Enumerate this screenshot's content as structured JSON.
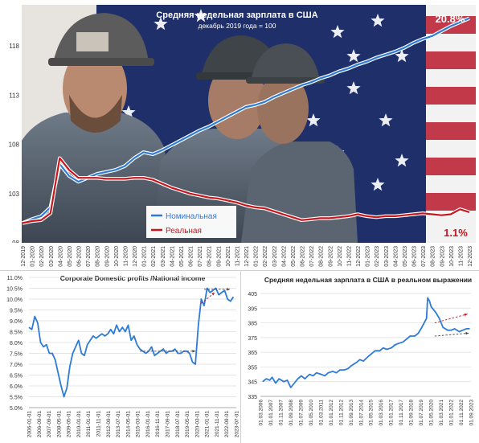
{
  "chart_data": [
    {
      "type": "line",
      "title": "Средняя недельная зарплата в США",
      "subtitle": "декабрь 2019 года = 100",
      "xlabel": "",
      "ylabel": "",
      "ylim": [
        98,
        122
      ],
      "yticks": [
        98,
        103,
        108,
        113,
        118
      ],
      "grid": false,
      "legend_position": "bottom-center",
      "x": [
        "12-2019",
        "01-2020",
        "02-2020",
        "03-2020",
        "04-2020",
        "05-2020",
        "06-2020",
        "07-2020",
        "08-2020",
        "09-2020",
        "10-2020",
        "11-2020",
        "12-2020",
        "01-2021",
        "02-2021",
        "03-2021",
        "04-2021",
        "05-2021",
        "06-2021",
        "07-2021",
        "08-2021",
        "09-2021",
        "10-2021",
        "11-2021",
        "12-2021",
        "01-2022",
        "02-2022",
        "03-2022",
        "04-2022",
        "05-2022",
        "06-2022",
        "07-2022",
        "08-2022",
        "09-2022",
        "10-2022",
        "11-2022",
        "12-2022",
        "01-2023",
        "02-2023",
        "03-2023",
        "04-2023",
        "05-2023",
        "06-2023",
        "07-2023",
        "08-2023",
        "09-2023",
        "10-2023",
        "11-2023",
        "12-2023"
      ],
      "series": [
        {
          "name": "Номинальная",
          "color": "#2e7bd6",
          "end_label": "20.8%",
          "values": [
            100.0,
            100.4,
            100.7,
            101.6,
            106.0,
            104.8,
            104.2,
            104.6,
            105.0,
            105.2,
            105.4,
            105.8,
            106.6,
            107.2,
            107.0,
            107.4,
            107.9,
            108.4,
            108.9,
            109.4,
            109.8,
            110.3,
            110.8,
            111.3,
            111.8,
            112.0,
            112.3,
            112.8,
            113.2,
            113.6,
            114.0,
            114.3,
            114.7,
            115.0,
            115.4,
            115.7,
            116.1,
            116.4,
            116.8,
            117.1,
            117.4,
            117.8,
            118.3,
            118.7,
            119.0,
            119.5,
            120.0,
            120.4,
            120.8
          ]
        },
        {
          "name": "Реальная",
          "color": "#c8161d",
          "end_label": "1.1%",
          "values": [
            100.0,
            100.2,
            100.3,
            101.0,
            106.6,
            105.4,
            104.6,
            104.6,
            104.6,
            104.5,
            104.5,
            104.5,
            104.6,
            104.6,
            104.4,
            104.0,
            103.6,
            103.3,
            103.0,
            102.8,
            102.6,
            102.5,
            102.3,
            102.1,
            101.8,
            101.6,
            101.5,
            101.2,
            100.9,
            100.6,
            100.3,
            100.4,
            100.5,
            100.5,
            100.6,
            100.7,
            100.9,
            100.7,
            100.6,
            100.7,
            100.7,
            100.8,
            100.9,
            101.0,
            100.9,
            100.8,
            100.9,
            101.4,
            101.1
          ]
        }
      ]
    },
    {
      "type": "line",
      "title": "Corporate Domestic profits /National income",
      "xlabel": "",
      "ylabel": "",
      "ylim": [
        5.0,
        11.0
      ],
      "yticks": [
        "5.0%",
        "5.5%",
        "6.0%",
        "6.5%",
        "7.0%",
        "7.5%",
        "8.0%",
        "8.5%",
        "9.0%",
        "9.5%",
        "10.0%",
        "10.5%",
        "11.0%"
      ],
      "yvalues": [
        5.0,
        5.5,
        6.0,
        6.5,
        7.0,
        7.5,
        8.0,
        8.5,
        9.0,
        9.5,
        10.0,
        10.5,
        11.0
      ],
      "xticks": [
        "2006-01-01",
        "2007-09-01",
        "2009-05-01",
        "2011-01-01",
        "2012-09-01",
        "2014-05-01",
        "2016-01-01",
        "2017-09-01",
        "2019-05-01",
        "2021-01-01",
        "2022-09-01"
      ],
      "xticks2": [
        "2006-09-01",
        "2008-05-01",
        "2010-01-01",
        "2011-11-01",
        "2013-07-01",
        "2015-03-01",
        "2016-11-01",
        "2018-07-01",
        "2020-03-01",
        "2021-11-01",
        "2023-07-01"
      ],
      "x_start": 2006.0,
      "x_end": 2023.75,
      "grid": true,
      "series": [
        {
          "color": "#2e7bd6",
          "x": [
            2006.0,
            2006.25,
            2006.5,
            2006.75,
            2007.0,
            2007.25,
            2007.5,
            2007.75,
            2008.0,
            2008.25,
            2008.5,
            2008.75,
            2009.0,
            2009.25,
            2009.5,
            2009.75,
            2010.0,
            2010.25,
            2010.5,
            2010.75,
            2011.0,
            2011.25,
            2011.5,
            2011.75,
            2012.0,
            2012.25,
            2012.5,
            2012.75,
            2013.0,
            2013.25,
            2013.5,
            2013.75,
            2014.0,
            2014.25,
            2014.5,
            2014.75,
            2015.0,
            2015.25,
            2015.5,
            2015.75,
            2016.0,
            2016.25,
            2016.5,
            2016.75,
            2017.0,
            2017.25,
            2017.5,
            2017.75,
            2018.0,
            2018.25,
            2018.5,
            2018.75,
            2019.0,
            2019.25,
            2019.5,
            2019.75,
            2020.0,
            2020.25,
            2020.5,
            2020.75,
            2021.0,
            2021.25,
            2021.5,
            2021.75,
            2022.0,
            2022.25,
            2022.5,
            2022.75,
            2023.0,
            2023.25,
            2023.5
          ],
          "y": [
            8.7,
            8.6,
            9.2,
            8.9,
            8.0,
            7.8,
            7.9,
            7.5,
            7.5,
            7.2,
            6.6,
            6.0,
            5.5,
            5.9,
            6.9,
            7.5,
            7.8,
            8.1,
            7.5,
            7.4,
            7.9,
            8.1,
            8.3,
            8.2,
            8.3,
            8.4,
            8.3,
            8.4,
            8.6,
            8.4,
            8.8,
            8.5,
            8.7,
            8.5,
            8.8,
            8.1,
            8.3,
            7.9,
            7.7,
            7.6,
            7.5,
            7.6,
            7.8,
            7.4,
            7.5,
            7.6,
            7.7,
            7.5,
            7.6,
            7.6,
            7.7,
            7.5,
            7.5,
            7.6,
            7.6,
            7.5,
            7.1,
            7.0,
            8.8,
            10.0,
            9.7,
            10.5,
            10.3,
            10.4,
            10.5,
            10.2,
            10.3,
            10.4,
            10.0,
            9.9,
            10.1
          ]
        }
      ],
      "annotations": [
        {
          "type": "dashed-arrow",
          "color": "#444444",
          "from": [
            2015.5,
            7.6
          ],
          "to": [
            2020.25,
            7.6
          ]
        },
        {
          "type": "dashed-arrow",
          "color": "#c8161d",
          "from": [
            2020.75,
            9.8
          ],
          "to": [
            2021.9,
            10.3
          ]
        },
        {
          "type": "dashed-arrow",
          "color": "#444444",
          "from": [
            2021.0,
            10.45
          ],
          "to": [
            2023.2,
            10.45
          ]
        }
      ]
    },
    {
      "type": "line",
      "title": "Средняя недельная зарплата в США в реальном выражении",
      "xlabel": "",
      "ylabel": "",
      "ylim": [
        335,
        405
      ],
      "yticks": [
        335,
        345,
        355,
        365,
        375,
        385,
        395,
        405
      ],
      "xticks": [
        "01.03.2006",
        "01.11.2007",
        "01.07.2009",
        "01.03.2011",
        "01.11.2012",
        "01.07.2014",
        "01.03.2016",
        "01.11.2017",
        "01.07.2019",
        "01.03.2021",
        "01.11.2022"
      ],
      "xticks2": [
        "01.01.2007",
        "01.09.2008",
        "01.05.2010",
        "01.01.2012",
        "01.09.2013",
        "01.05.2015",
        "01.01.2017",
        "01.09.2018",
        "01.05.2020",
        "01.01.2022",
        "01.09.2023"
      ],
      "x_start": 2006.0,
      "x_end": 2024.0,
      "grid": true,
      "series": [
        {
          "color": "#2e7bd6",
          "x": [
            2006.2,
            2006.5,
            2006.8,
            2007.0,
            2007.3,
            2007.6,
            2008.0,
            2008.3,
            2008.6,
            2008.9,
            2009.2,
            2009.5,
            2009.8,
            2010.2,
            2010.5,
            2010.8,
            2011.2,
            2011.5,
            2011.8,
            2012.2,
            2012.5,
            2012.8,
            2013.2,
            2013.5,
            2013.8,
            2014.2,
            2014.5,
            2014.8,
            2015.2,
            2015.5,
            2015.8,
            2016.2,
            2016.5,
            2016.8,
            2017.2,
            2017.5,
            2017.8,
            2018.2,
            2018.5,
            2018.8,
            2019.2,
            2019.5,
            2019.8,
            2020.0,
            2020.2,
            2020.3,
            2020.45,
            2020.6,
            2020.8,
            2021.0,
            2021.3,
            2021.6,
            2022.0,
            2022.3,
            2022.6,
            2023.0,
            2023.3,
            2023.6,
            2023.9
          ],
          "y": [
            345,
            347,
            346,
            348,
            344,
            347,
            345,
            346,
            341,
            344,
            347,
            349,
            347,
            350,
            349,
            351,
            350,
            349,
            351,
            352,
            351,
            353,
            353,
            354,
            356,
            358,
            360,
            359,
            362,
            364,
            366,
            366,
            368,
            367,
            368,
            370,
            371,
            372,
            374,
            376,
            376,
            378,
            382,
            385,
            388,
            402,
            400,
            396,
            394,
            392,
            388,
            382,
            380,
            380,
            381,
            379,
            380,
            381,
            381
          ]
        }
      ],
      "annotations": [
        {
          "type": "dashed-arrow",
          "color": "#c8161d",
          "from": [
            2020.9,
            385
          ],
          "to": [
            2023.7,
            391
          ]
        },
        {
          "type": "dashed-arrow",
          "color": "#444444",
          "from": [
            2020.9,
            376
          ],
          "to": [
            2023.8,
            378
          ]
        }
      ]
    }
  ],
  "colors": {
    "nominal": "#2e7bd6",
    "real": "#c8161d",
    "flag_red": "#b9223a",
    "flag_blue": "#1e2f66"
  }
}
